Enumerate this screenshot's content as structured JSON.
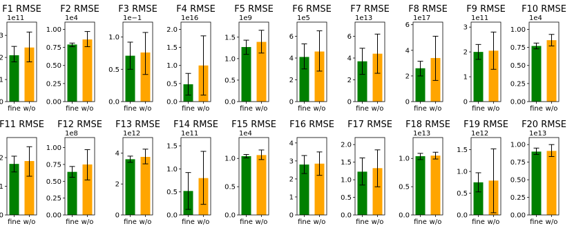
{
  "colors": {
    "fine": "#008000",
    "wo": "#ffa500",
    "err": "#000000"
  },
  "chart_data": [
    {
      "type": "bar",
      "title": "F1 RMSE",
      "multiplier": "1e11",
      "categories": [
        "fine",
        "w/o"
      ],
      "values": [
        2.1,
        2.45
      ],
      "errors": [
        [
          1.8,
          2.5
        ],
        [
          1.8,
          3.15
        ]
      ],
      "ylim": [
        0,
        3.6
      ],
      "yticks": [
        "0",
        "1",
        "2",
        "3"
      ],
      "ytick_values": [
        0,
        1,
        2,
        3
      ]
    },
    {
      "type": "bar",
      "title": "F2 RMSE",
      "multiplier": "1e4",
      "categories": [
        "fine",
        "w/o"
      ],
      "values": [
        0.79,
        0.86
      ],
      "errors": [
        [
          0.76,
          0.81
        ],
        [
          0.76,
          0.97
        ]
      ],
      "ylim": [
        0,
        1.1
      ],
      "yticks": [
        "0.00",
        "0.25",
        "0.50",
        "0.75",
        "1.00"
      ],
      "ytick_values": [
        0,
        0.25,
        0.5,
        0.75,
        1.0
      ]
    },
    {
      "type": "bar",
      "title": "F3 RMSE",
      "multiplier": "1e−1",
      "categories": [
        "fine",
        "w/o"
      ],
      "values": [
        0.71,
        0.76
      ],
      "errors": [
        [
          0.5,
          0.92
        ],
        [
          0.42,
          1.07
        ]
      ],
      "ylim": [
        0,
        1.23
      ],
      "yticks": [
        "0.0",
        "0.5",
        "1.0"
      ],
      "ytick_values": [
        0,
        0.5,
        1.0
      ]
    },
    {
      "type": "bar",
      "title": "F4 RMSE",
      "multiplier": "1e16",
      "categories": [
        "fine",
        "w/o"
      ],
      "values": [
        0.48,
        1.0
      ],
      "errors": [
        [
          0.18,
          0.78
        ],
        [
          0.18,
          1.82
        ]
      ],
      "ylim": [
        0,
        2.2
      ],
      "yticks": [
        "0.0",
        "0.5",
        "1.0",
        "1.5",
        "2.0"
      ],
      "ytick_values": [
        0,
        0.5,
        1.0,
        1.5,
        2.0
      ]
    },
    {
      "type": "bar",
      "title": "F5 RMSE",
      "multiplier": "1e9",
      "categories": [
        "fine",
        "w/o"
      ],
      "values": [
        1.27,
        1.39
      ],
      "errors": [
        [
          1.1,
          1.43
        ],
        [
          1.13,
          1.66
        ]
      ],
      "ylim": [
        0,
        1.85
      ],
      "yticks": [
        "0.0",
        "0.5",
        "1.0",
        "1.5"
      ],
      "ytick_values": [
        0,
        0.5,
        1.0,
        1.5
      ]
    },
    {
      "type": "bar",
      "title": "F6 RMSE",
      "multiplier": "1e5",
      "categories": [
        "fine",
        "w/o"
      ],
      "values": [
        4.1,
        4.6
      ],
      "errors": [
        [
          3.0,
          5.3
        ],
        [
          2.8,
          6.5
        ]
      ],
      "ylim": [
        0,
        7.3
      ],
      "yticks": [
        "0",
        "2",
        "4",
        "6"
      ],
      "ytick_values": [
        0,
        2,
        4,
        6
      ]
    },
    {
      "type": "bar",
      "title": "F7 RMSE",
      "multiplier": "1e13",
      "categories": [
        "fine",
        "w/o"
      ],
      "values": [
        3.7,
        4.4
      ],
      "errors": [
        [
          2.5,
          4.9
        ],
        [
          2.6,
          6.2
        ]
      ],
      "ylim": [
        0,
        7.3
      ],
      "yticks": [
        "0",
        "2",
        "4",
        "6"
      ],
      "ytick_values": [
        0,
        2,
        4,
        6
      ]
    },
    {
      "type": "bar",
      "title": "F8 RMSE",
      "multiplier": "1e17",
      "categories": [
        "fine",
        "w/o"
      ],
      "values": [
        2.6,
        3.4
      ],
      "errors": [
        [
          2.0,
          3.15
        ],
        [
          1.65,
          5.1
        ]
      ],
      "ylim": [
        0,
        6.2
      ],
      "yticks": [
        "0",
        "2",
        "4",
        "6"
      ],
      "ytick_values": [
        0,
        2,
        4,
        6
      ]
    },
    {
      "type": "bar",
      "title": "F9 RMSE",
      "multiplier": "1e11",
      "categories": [
        "fine",
        "w/o"
      ],
      "values": [
        2.0,
        2.05
      ],
      "errors": [
        [
          1.7,
          2.3
        ],
        [
          1.3,
          2.8
        ]
      ],
      "ylim": [
        0,
        3.2
      ],
      "yticks": [
        "0",
        "1",
        "2",
        "3"
      ],
      "ytick_values": [
        0,
        1,
        2,
        3
      ]
    },
    {
      "type": "bar",
      "title": "F10 RMSE",
      "multiplier": "1e4",
      "categories": [
        "fine",
        "w/o"
      ],
      "values": [
        0.77,
        0.85
      ],
      "errors": [
        [
          0.73,
          0.81
        ],
        [
          0.77,
          0.93
        ]
      ],
      "ylim": [
        0,
        1.1
      ],
      "yticks": [
        "0.00",
        "0.25",
        "0.50",
        "0.75",
        "1.00"
      ],
      "ytick_values": [
        0,
        0.25,
        0.5,
        0.75,
        1.0
      ]
    },
    {
      "type": "bar",
      "title": "F11 RMSE",
      "multiplier": "",
      "categories": [
        "fine",
        "w/o"
      ],
      "values": [
        1.78,
        1.88
      ],
      "errors": [
        [
          1.5,
          2.05
        ],
        [
          1.35,
          2.38
        ]
      ],
      "ylim": [
        0,
        2.7
      ],
      "yticks": [
        "0",
        "1",
        "2"
      ],
      "ytick_values": [
        0,
        1,
        2
      ]
    },
    {
      "type": "bar",
      "title": "F12 RMSE",
      "multiplier": "1e8",
      "categories": [
        "fine",
        "w/o"
      ],
      "values": [
        0.64,
        0.75
      ],
      "errors": [
        [
          0.56,
          0.72
        ],
        [
          0.52,
          0.97
        ]
      ],
      "ylim": [
        0,
        1.15
      ],
      "yticks": [
        "0.00",
        "0.25",
        "0.50",
        "0.75",
        "1.00"
      ],
      "ytick_values": [
        0,
        0.25,
        0.5,
        0.75,
        1.0
      ]
    },
    {
      "type": "bar",
      "title": "F13 RMSE",
      "multiplier": "1e12",
      "categories": [
        "fine",
        "w/o"
      ],
      "values": [
        3.6,
        3.75
      ],
      "errors": [
        [
          3.4,
          3.8
        ],
        [
          3.3,
          4.25
        ]
      ],
      "ylim": [
        0,
        5.0
      ],
      "yticks": [
        "0",
        "2",
        "4"
      ],
      "ytick_values": [
        0,
        2,
        4
      ]
    },
    {
      "type": "bar",
      "title": "F14 RMSE",
      "multiplier": "1e11",
      "categories": [
        "fine",
        "w/o"
      ],
      "values": [
        0.52,
        0.8
      ],
      "errors": [
        [
          0.12,
          0.92
        ],
        [
          0.23,
          1.38
        ]
      ],
      "ylim": [
        0,
        1.68
      ],
      "yticks": [
        "0.0",
        "0.5",
        "1.0",
        "1.5"
      ],
      "ytick_values": [
        0,
        0.5,
        1.0,
        1.5
      ]
    },
    {
      "type": "bar",
      "title": "F15 RMSE",
      "multiplier": "1e4",
      "categories": [
        "fine",
        "w/o"
      ],
      "values": [
        1.04,
        1.06
      ],
      "errors": [
        [
          1.01,
          1.07
        ],
        [
          0.98,
          1.15
        ]
      ],
      "ylim": [
        0,
        1.37
      ],
      "yticks": [
        "0.0",
        "0.5",
        "1.0"
      ],
      "ytick_values": [
        0,
        0.5,
        1.0
      ]
    },
    {
      "type": "bar",
      "title": "F16 RMSE",
      "multiplier": "",
      "categories": [
        "fine",
        "w/o"
      ],
      "values": [
        2.8,
        2.85
      ],
      "errors": [
        [
          2.3,
          3.3
        ],
        [
          2.2,
          3.5
        ]
      ],
      "ylim": [
        0,
        4.3
      ],
      "yticks": [
        "0",
        "1",
        "2",
        "3",
        "4"
      ],
      "ytick_values": [
        0,
        1,
        2,
        3,
        4
      ]
    },
    {
      "type": "bar",
      "title": "F17 RMSE",
      "multiplier": "",
      "categories": [
        "fine",
        "w/o"
      ],
      "values": [
        1.23,
        1.33
      ],
      "errors": [
        [
          0.85,
          1.62
        ],
        [
          0.8,
          1.85
        ]
      ],
      "ylim": [
        0,
        2.2
      ],
      "yticks": [
        "0.0",
        "0.5",
        "1.0",
        "1.5",
        "2.0"
      ],
      "ytick_values": [
        0,
        0.5,
        1.0,
        1.5,
        2.0
      ]
    },
    {
      "type": "bar",
      "title": "F18 RMSE",
      "multiplier": "1e13",
      "categories": [
        "fine",
        "w/o"
      ],
      "values": [
        1.04,
        1.05
      ],
      "errors": [
        [
          0.98,
          1.09
        ],
        [
          0.99,
          1.11
        ]
      ],
      "ylim": [
        0,
        1.37
      ],
      "yticks": [
        "0.0",
        "0.5",
        "1.0"
      ],
      "ytick_values": [
        0,
        0.5,
        1.0
      ]
    },
    {
      "type": "bar",
      "title": "F19 RMSE",
      "multiplier": "1e12",
      "categories": [
        "fine",
        "w/o"
      ],
      "values": [
        0.75,
        0.79
      ],
      "errors": [
        [
          0.53,
          0.97
        ],
        [
          0.05,
          1.52
        ]
      ],
      "ylim": [
        0,
        1.78
      ],
      "yticks": [
        "0.0",
        "0.5",
        "1.0",
        "1.5"
      ],
      "ytick_values": [
        0,
        0.5,
        1.0,
        1.5
      ]
    },
    {
      "type": "bar",
      "title": "F20 RMSE",
      "multiplier": "1e13",
      "categories": [
        "fine",
        "w/o"
      ],
      "values": [
        0.9,
        0.91
      ],
      "errors": [
        [
          0.86,
          0.95
        ],
        [
          0.83,
          1.0
        ]
      ],
      "ylim": [
        0,
        1.1
      ],
      "yticks": [
        "0.00",
        "0.25",
        "0.50",
        "0.75",
        "1.00"
      ],
      "ytick_values": [
        0,
        0.25,
        0.5,
        0.75,
        1.0
      ]
    }
  ]
}
